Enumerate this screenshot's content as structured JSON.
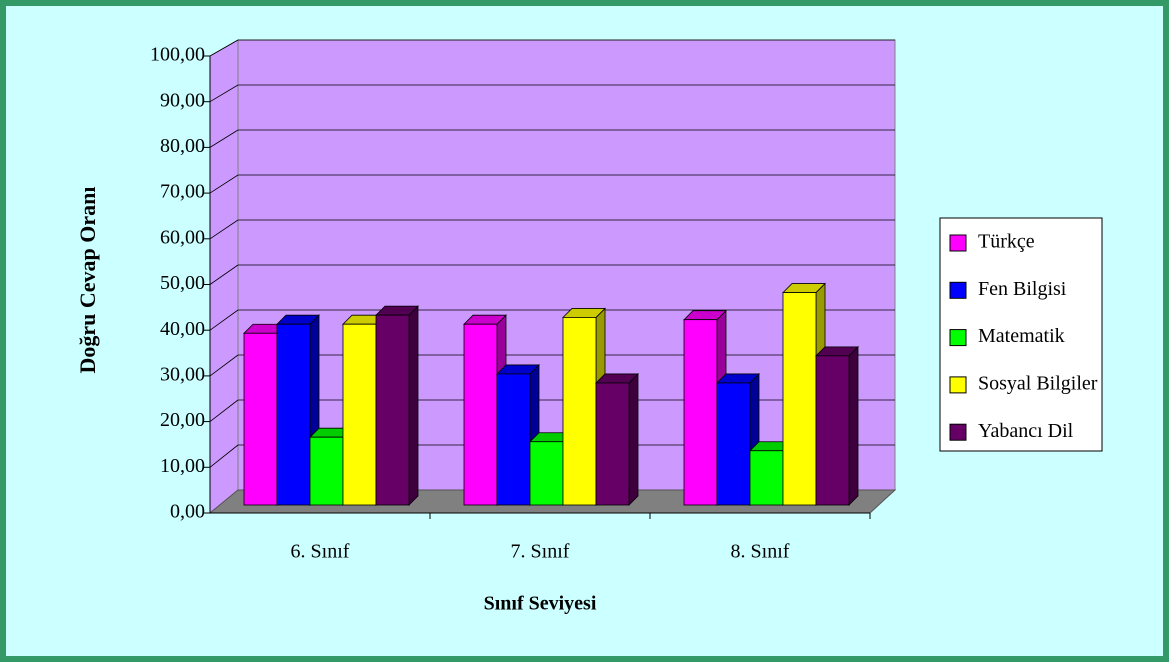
{
  "chart_data": {
    "type": "bar3d",
    "xlabel": "Sınıf Seviyesi",
    "ylabel": "Doğru Cevap Oranı",
    "categories": [
      "6. Sınıf",
      "7. Sınıf",
      "8. Sınıf"
    ],
    "series": [
      {
        "name": "Türkçe",
        "color": "#ff00ff",
        "values": [
          38,
          40,
          41
        ]
      },
      {
        "name": "Fen Bilgisi",
        "color": "#0000ff",
        "values": [
          40,
          29,
          27
        ]
      },
      {
        "name": "Matematik",
        "color": "#00ff00",
        "values": [
          15,
          14,
          12
        ]
      },
      {
        "name": "Sosyal Bilgiler",
        "color": "#ffff00",
        "values": [
          40,
          41.5,
          47
        ]
      },
      {
        "name": "Yabancı Dil",
        "color": "#660066",
        "values": [
          42,
          27,
          33
        ]
      }
    ],
    "ylim": [
      0,
      100
    ],
    "yticks": [
      {
        "value": 0,
        "label": "0,00"
      },
      {
        "value": 10,
        "label": "10,00"
      },
      {
        "value": 20,
        "label": "20,00"
      },
      {
        "value": 30,
        "label": "30,00"
      },
      {
        "value": 40,
        "label": "40,00"
      },
      {
        "value": 50,
        "label": "50,00"
      },
      {
        "value": 60,
        "label": "60,00"
      },
      {
        "value": 70,
        "label": "70,00"
      },
      {
        "value": 80,
        "label": "80,00"
      },
      {
        "value": 90,
        "label": "90,00"
      },
      {
        "value": 100,
        "label": "100,00"
      }
    ],
    "grid": true,
    "legend": "right"
  }
}
